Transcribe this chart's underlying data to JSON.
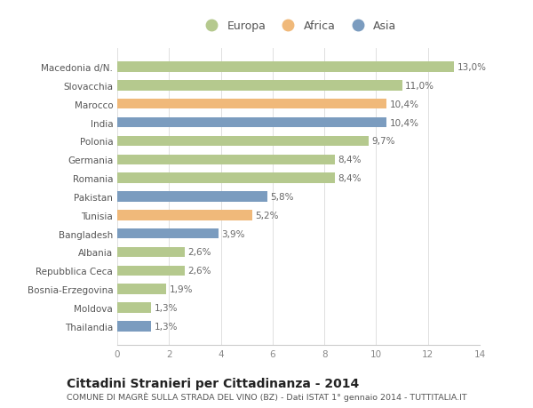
{
  "categories": [
    "Macedonia d/N.",
    "Slovacchia",
    "Marocco",
    "India",
    "Polonia",
    "Germania",
    "Romania",
    "Pakistan",
    "Tunisia",
    "Bangladesh",
    "Albania",
    "Repubblica Ceca",
    "Bosnia-Erzegovina",
    "Moldova",
    "Thailandia"
  ],
  "values": [
    13.0,
    11.0,
    10.4,
    10.4,
    9.7,
    8.4,
    8.4,
    5.8,
    5.2,
    3.9,
    2.6,
    2.6,
    1.9,
    1.3,
    1.3
  ],
  "labels": [
    "13,0%",
    "11,0%",
    "10,4%",
    "10,4%",
    "9,7%",
    "8,4%",
    "8,4%",
    "5,8%",
    "5,2%",
    "3,9%",
    "2,6%",
    "2,6%",
    "1,9%",
    "1,3%",
    "1,3%"
  ],
  "continent": [
    "Europa",
    "Europa",
    "Africa",
    "Asia",
    "Europa",
    "Europa",
    "Europa",
    "Asia",
    "Africa",
    "Asia",
    "Europa",
    "Europa",
    "Europa",
    "Europa",
    "Asia"
  ],
  "color_europa": "#b5c98e",
  "color_africa": "#f0b97a",
  "color_asia": "#7b9cbf",
  "legend_labels": [
    "Europa",
    "Africa",
    "Asia"
  ],
  "title": "Cittadini Stranieri per Cittadinanza - 2014",
  "subtitle": "COMUNE DI MAGRÈ SULLA STRADA DEL VINO (BZ) - Dati ISTAT 1° gennaio 2014 - TUTTITALIA.IT",
  "xlim": [
    0,
    14
  ],
  "xticks": [
    0,
    2,
    4,
    6,
    8,
    10,
    12,
    14
  ],
  "background_color": "#ffffff",
  "bar_height": 0.55,
  "label_fontsize": 7.5,
  "tick_fontsize": 7.5,
  "title_fontsize": 10,
  "subtitle_fontsize": 6.8
}
